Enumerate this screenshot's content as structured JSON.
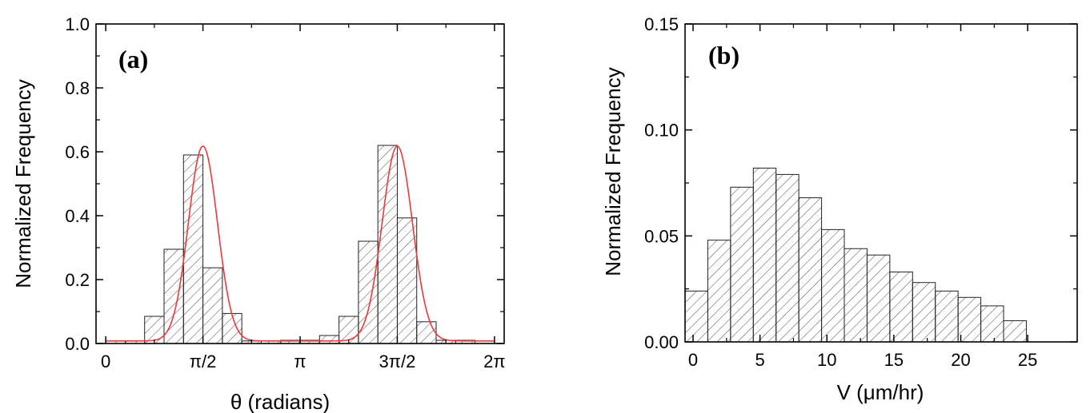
{
  "chart_data": [
    {
      "type": "bar",
      "panel_label": "(a)",
      "xlabel": "θ (radians)",
      "ylabel": "Normalized Frequency",
      "xlim": [
        -0.157,
        6.44
      ],
      "ylim": [
        0,
        1.0
      ],
      "yticks": [
        "0.0",
        "0.2",
        "0.4",
        "0.6",
        "0.8",
        "1.0"
      ],
      "xticks": [
        {
          "value": 0,
          "label": "0"
        },
        {
          "value": 1.5708,
          "label": "π/2"
        },
        {
          "value": 3.1416,
          "label": "π"
        },
        {
          "value": 4.7124,
          "label": "3π/2"
        },
        {
          "value": 6.2832,
          "label": "2π"
        }
      ],
      "bin_width": 0.3142,
      "bins": [
        {
          "x0": 0.0,
          "value": 0.008
        },
        {
          "x0": 0.3142,
          "value": 0.008
        },
        {
          "x0": 0.6283,
          "value": 0.085
        },
        {
          "x0": 0.9425,
          "value": 0.295
        },
        {
          "x0": 1.2566,
          "value": 0.59
        },
        {
          "x0": 1.5708,
          "value": 0.237
        },
        {
          "x0": 1.885,
          "value": 0.094
        },
        {
          "x0": 2.1991,
          "value": 0.008
        },
        {
          "x0": 2.5133,
          "value": 0.008
        },
        {
          "x0": 2.8274,
          "value": 0.01
        },
        {
          "x0": 3.1416,
          "value": 0.01
        },
        {
          "x0": 3.4558,
          "value": 0.025
        },
        {
          "x0": 3.7699,
          "value": 0.085
        },
        {
          "x0": 4.0841,
          "value": 0.32
        },
        {
          "x0": 4.3982,
          "value": 0.62
        },
        {
          "x0": 4.7124,
          "value": 0.393
        },
        {
          "x0": 5.0265,
          "value": 0.068
        },
        {
          "x0": 5.3407,
          "value": 0.01
        },
        {
          "x0": 5.6549,
          "value": 0.01
        }
      ],
      "fit_curve": {
        "color": "#e8393b",
        "baseline": 0.008,
        "peaks": [
          {
            "center": 1.5708,
            "amplitude": 0.61,
            "sigma": 0.235
          },
          {
            "center": 4.7124,
            "amplitude": 0.61,
            "sigma": 0.245
          }
        ]
      }
    },
    {
      "type": "bar",
      "panel_label": "(b)",
      "xlabel": "V (μm/hr)",
      "ylabel": "Normalized Frequency",
      "xlim": [
        -0.6,
        28.7
      ],
      "ylim": [
        0,
        0.15
      ],
      "yticks": [
        "0.00",
        "0.05",
        "0.10",
        "0.15"
      ],
      "xticks": [
        {
          "value": 0,
          "label": "0"
        },
        {
          "value": 5,
          "label": "5"
        },
        {
          "value": 10,
          "label": "10"
        },
        {
          "value": 15,
          "label": "15"
        },
        {
          "value": 20,
          "label": "20"
        },
        {
          "value": 25,
          "label": "25"
        }
      ],
      "bin_width": 1.7,
      "bins": [
        {
          "x0": -0.6,
          "value": 0.024
        },
        {
          "x0": 1.1,
          "value": 0.048
        },
        {
          "x0": 2.8,
          "value": 0.073
        },
        {
          "x0": 4.5,
          "value": 0.082
        },
        {
          "x0": 6.2,
          "value": 0.079
        },
        {
          "x0": 7.9,
          "value": 0.068
        },
        {
          "x0": 9.6,
          "value": 0.053
        },
        {
          "x0": 11.3,
          "value": 0.044
        },
        {
          "x0": 13.0,
          "value": 0.041
        },
        {
          "x0": 14.7,
          "value": 0.033
        },
        {
          "x0": 16.4,
          "value": 0.028
        },
        {
          "x0": 18.1,
          "value": 0.024
        },
        {
          "x0": 19.8,
          "value": 0.021
        },
        {
          "x0": 21.5,
          "value": 0.017
        },
        {
          "x0": 23.2,
          "value": 0.01
        }
      ]
    }
  ]
}
